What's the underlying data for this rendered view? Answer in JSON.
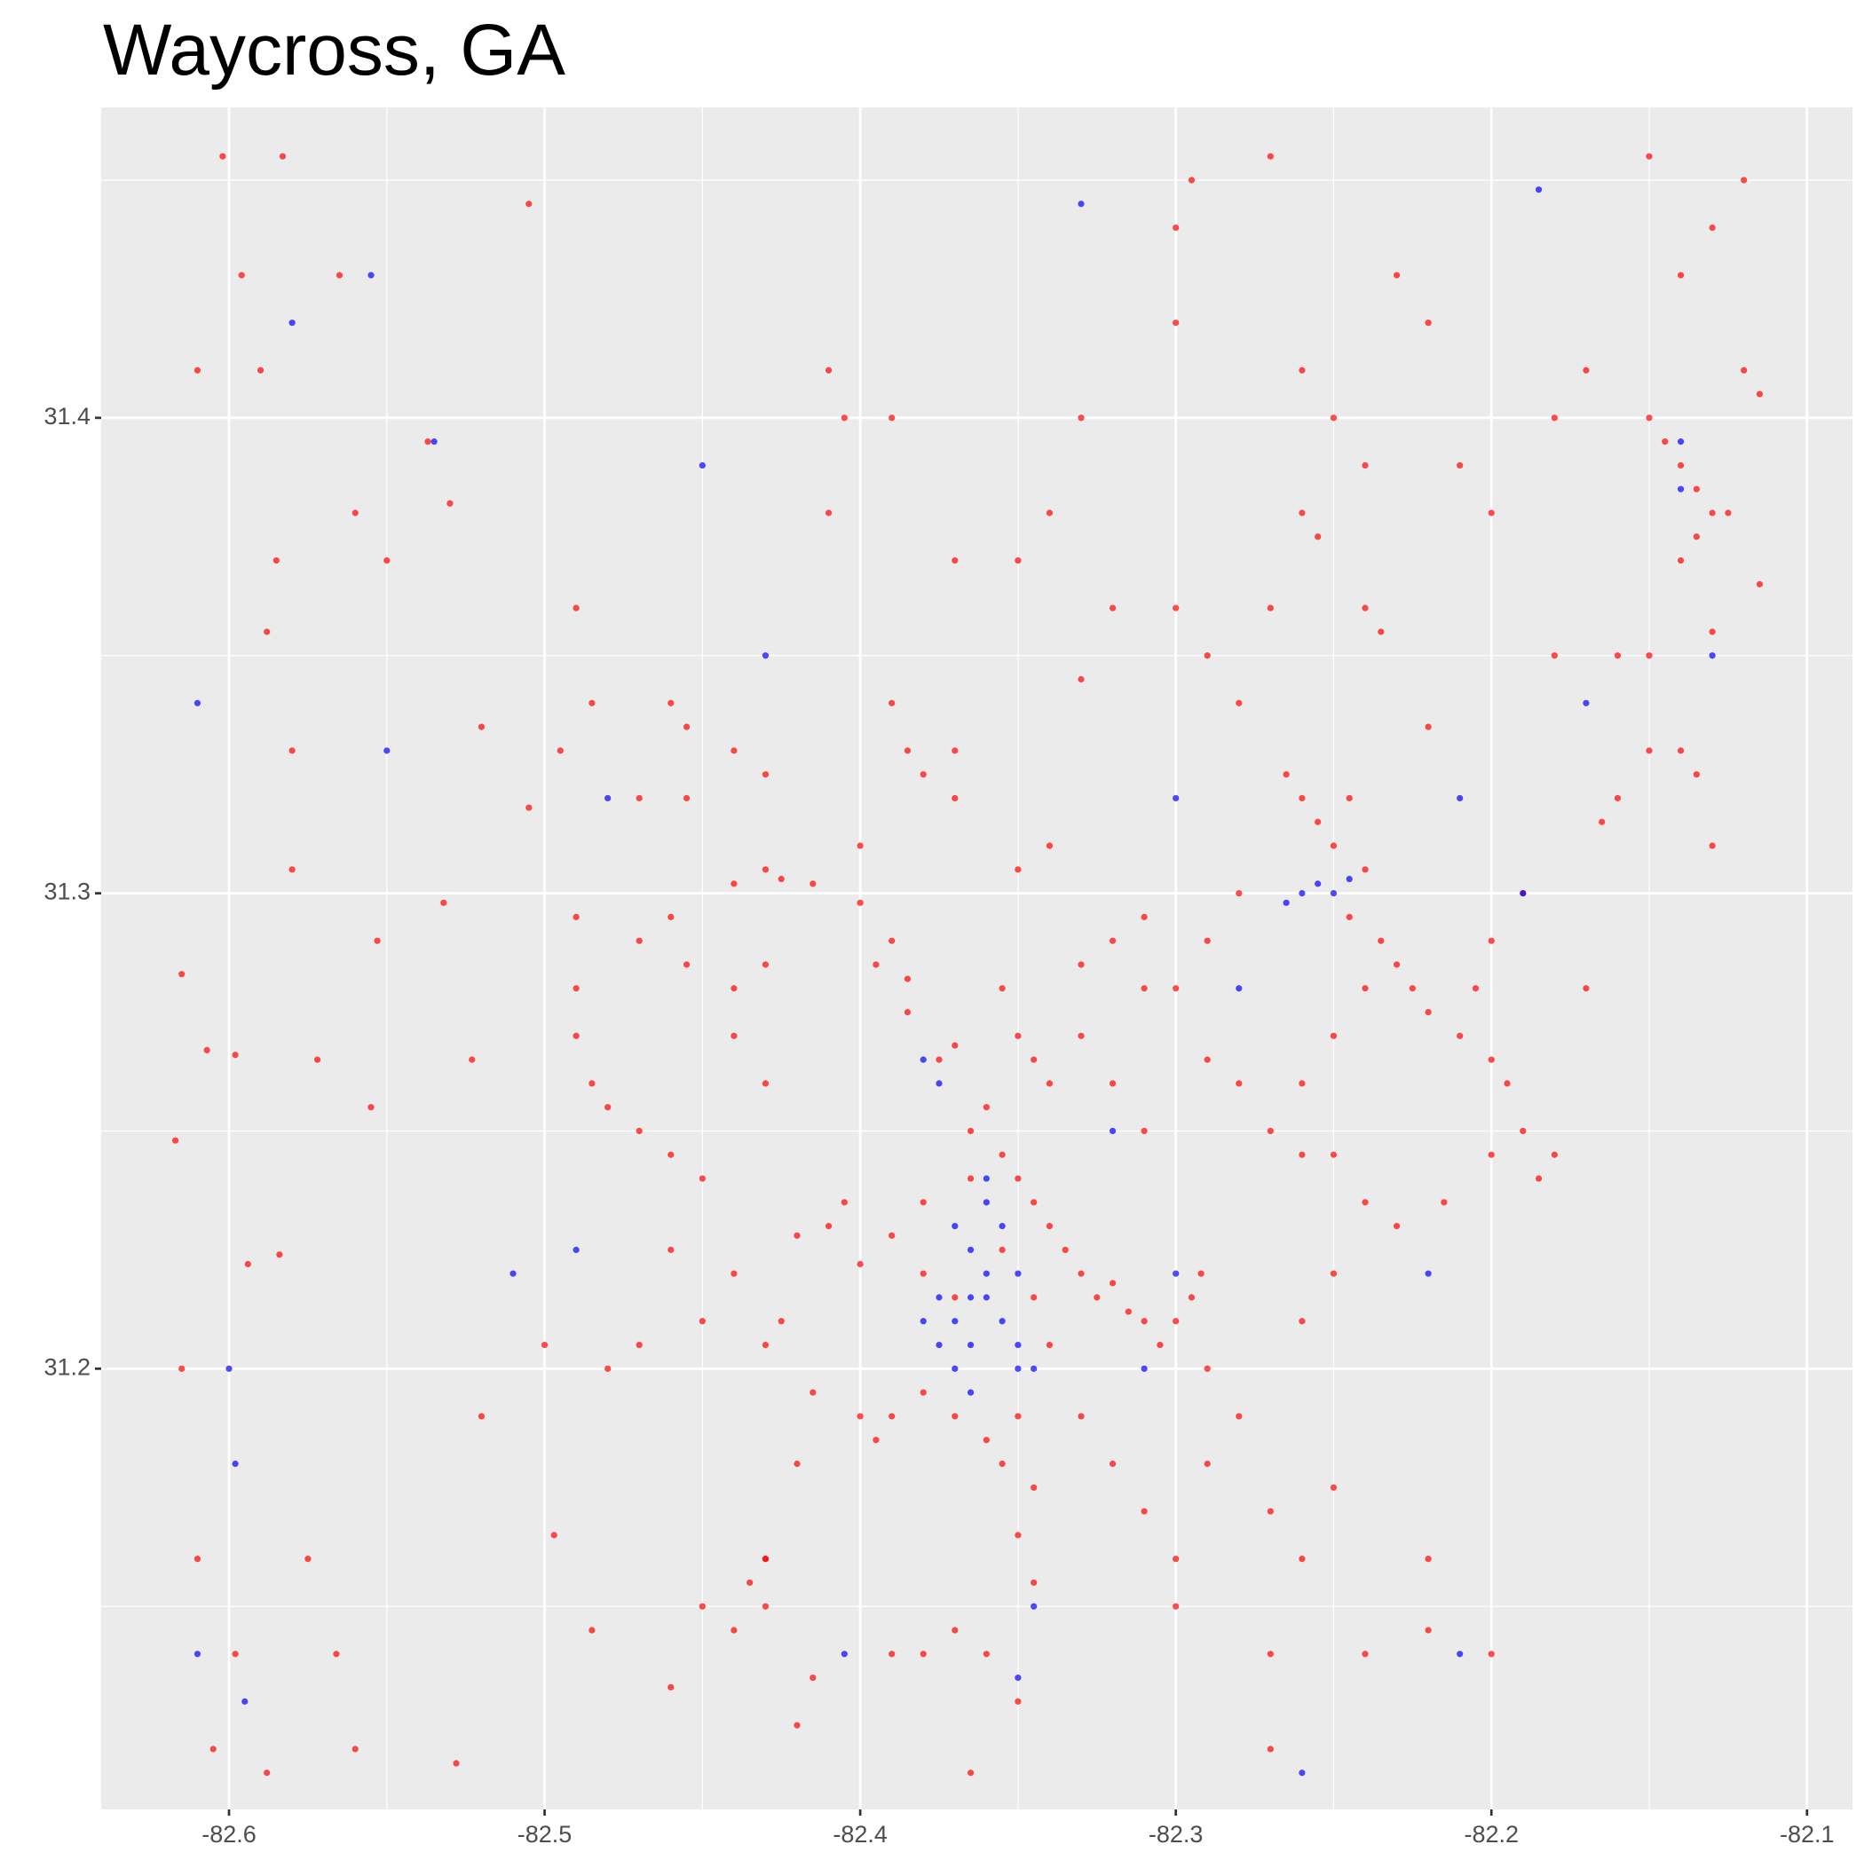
{
  "chart_data": {
    "type": "scatter",
    "title": "Waycross, GA",
    "xlim": [
      -82.6405,
      -82.0856
    ],
    "ylim": [
      31.1073,
      31.4653
    ],
    "xticks": [
      -82.6,
      -82.5,
      -82.4,
      -82.3,
      -82.2,
      -82.1
    ],
    "yticks": [
      31.2,
      31.3,
      31.4
    ],
    "grid": true,
    "minor_grid": true,
    "background": "#ebebeb",
    "series": [
      {
        "color": "#ff0000",
        "x": [
          -82.602,
          -82.583,
          -82.596,
          -82.565,
          -82.59,
          -82.56,
          -82.585,
          -82.537,
          -82.53,
          -82.505,
          -82.61,
          -82.588,
          -82.58,
          -82.58,
          -82.553,
          -82.532,
          -82.523,
          -82.55,
          -82.615,
          -82.607,
          -82.598,
          -82.617,
          -82.572,
          -82.555,
          -82.594,
          -82.584,
          -82.615,
          -82.61,
          -82.598,
          -82.605,
          -82.588,
          -82.56,
          -82.528,
          -82.575,
          -82.566,
          -82.5,
          -82.497,
          -82.485,
          -82.46,
          -82.52,
          -82.49,
          -82.485,
          -82.495,
          -82.505,
          -82.47,
          -82.46,
          -82.455,
          -82.455,
          -82.44,
          -82.43,
          -82.43,
          -82.425,
          -82.44,
          -82.415,
          -82.4,
          -82.39,
          -82.385,
          -82.395,
          -82.385,
          -82.37,
          -82.375,
          -82.365,
          -82.36,
          -82.355,
          -82.35,
          -82.345,
          -82.34,
          -82.335,
          -82.33,
          -82.325,
          -82.32,
          -82.315,
          -82.31,
          -82.305,
          -82.3,
          -82.295,
          -82.29,
          -82.292,
          -82.34,
          -82.345,
          -82.38,
          -82.39,
          -82.4,
          -82.41,
          -82.405,
          -82.42,
          -82.38,
          -82.37,
          -82.355,
          -82.365,
          -82.345,
          -82.35,
          -82.34,
          -82.355,
          -82.33,
          -82.32,
          -82.31,
          -82.3,
          -82.29,
          -82.28,
          -82.27,
          -82.26,
          -82.25,
          -82.26,
          -82.25,
          -82.24,
          -82.235,
          -82.23,
          -82.225,
          -82.22,
          -82.245,
          -82.24,
          -82.25,
          -82.255,
          -82.245,
          -82.26,
          -82.265,
          -82.24,
          -82.235,
          -82.22,
          -82.21,
          -82.2,
          -82.195,
          -82.19,
          -82.18,
          -82.185,
          -82.2,
          -82.215,
          -82.23,
          -82.24,
          -82.35,
          -82.355,
          -82.345,
          -82.35,
          -82.345,
          -82.36,
          -82.37,
          -82.38,
          -82.39,
          -82.395,
          -82.4,
          -82.415,
          -82.42,
          -82.43,
          -82.435,
          -82.425,
          -82.43,
          -82.44,
          -82.45,
          -82.46,
          -82.47,
          -82.48,
          -82.485,
          -82.49,
          -82.49,
          -82.49,
          -82.47,
          -82.46,
          -82.455,
          -82.44,
          -82.43,
          -82.44,
          -82.43,
          -82.46,
          -82.45,
          -82.47,
          -82.48,
          -82.34,
          -82.35,
          -82.37,
          -82.37,
          -82.38,
          -82.385,
          -82.39,
          -82.4,
          -82.41,
          -82.405,
          -82.41,
          -82.39,
          -82.37,
          -82.35,
          -82.34,
          -82.33,
          -82.32,
          -82.3,
          -82.29,
          -82.28,
          -82.27,
          -82.26,
          -82.255,
          -82.3,
          -82.3,
          -82.295,
          -82.27,
          -82.26,
          -82.25,
          -82.24,
          -82.23,
          -82.22,
          -82.21,
          -82.2,
          -82.18,
          -82.17,
          -82.16,
          -82.15,
          -82.16,
          -82.165,
          -82.14,
          -82.135,
          -82.13,
          -82.145,
          -82.14,
          -82.135,
          -82.13,
          -82.125,
          -82.135,
          -82.14,
          -82.15,
          -82.12,
          -82.115,
          -82.14,
          -82.13,
          -82.15,
          -82.12,
          -82.115,
          -82.13,
          -82.15,
          -82.18,
          -82.19,
          -82.17,
          -82.2,
          -82.205,
          -82.25,
          -82.26,
          -82.28,
          -82.29,
          -82.3,
          -82.3,
          -82.27,
          -82.26,
          -82.25,
          -82.24,
          -82.22,
          -82.2,
          -82.22,
          -82.27,
          -82.27,
          -82.32,
          -82.31,
          -82.33,
          -82.37,
          -82.38,
          -82.39,
          -82.36,
          -82.415,
          -82.42,
          -82.44,
          -82.43,
          -82.43,
          -82.45,
          -82.365,
          -82.35,
          -82.31,
          -82.32,
          -82.31,
          -82.33,
          -82.28,
          -82.29,
          -82.33,
          -82.52
        ],
        "values": [
          31.455,
          31.455,
          31.43,
          31.43,
          31.41,
          31.38,
          31.37,
          31.395,
          31.382,
          31.445,
          31.41,
          31.355,
          31.33,
          31.305,
          31.29,
          31.298,
          31.265,
          31.37,
          31.283,
          31.267,
          31.266,
          31.248,
          31.265,
          31.255,
          31.222,
          31.224,
          31.2,
          31.16,
          31.14,
          31.12,
          31.115,
          31.12,
          31.117,
          31.16,
          31.14,
          31.205,
          31.165,
          31.145,
          31.133,
          31.19,
          31.36,
          31.34,
          31.33,
          31.318,
          31.32,
          31.34,
          31.335,
          31.32,
          31.33,
          31.325,
          31.305,
          31.303,
          31.302,
          31.302,
          31.298,
          31.29,
          31.282,
          31.285,
          31.275,
          31.268,
          31.265,
          31.25,
          31.255,
          31.245,
          31.24,
          31.235,
          31.23,
          31.225,
          31.22,
          31.215,
          31.218,
          31.212,
          31.21,
          31.205,
          31.21,
          31.215,
          31.2,
          31.22,
          31.205,
          31.215,
          31.235,
          31.228,
          31.222,
          31.23,
          31.235,
          31.228,
          31.22,
          31.215,
          31.225,
          31.24,
          31.265,
          31.27,
          31.26,
          31.28,
          31.285,
          31.29,
          31.295,
          31.28,
          31.265,
          31.26,
          31.25,
          31.245,
          31.245,
          31.26,
          31.27,
          31.28,
          31.29,
          31.285,
          31.28,
          31.275,
          31.295,
          31.305,
          31.31,
          31.315,
          31.32,
          31.32,
          31.325,
          31.36,
          31.355,
          31.335,
          31.27,
          31.265,
          31.26,
          31.25,
          31.245,
          31.24,
          31.245,
          31.235,
          31.23,
          31.235,
          31.19,
          31.18,
          31.175,
          31.165,
          31.155,
          31.185,
          31.19,
          31.195,
          31.19,
          31.185,
          31.19,
          31.195,
          31.18,
          31.16,
          31.155,
          31.21,
          31.205,
          31.22,
          31.24,
          31.245,
          31.25,
          31.255,
          31.26,
          31.27,
          31.28,
          31.295,
          31.29,
          31.295,
          31.285,
          31.28,
          31.285,
          31.27,
          31.26,
          31.225,
          31.21,
          31.205,
          31.2,
          31.31,
          31.305,
          31.32,
          31.33,
          31.325,
          31.33,
          31.34,
          31.31,
          31.38,
          31.4,
          31.41,
          31.4,
          31.37,
          31.37,
          31.38,
          31.4,
          31.36,
          31.36,
          31.35,
          31.34,
          31.36,
          31.38,
          31.375,
          31.42,
          31.44,
          31.45,
          31.455,
          31.41,
          31.4,
          31.39,
          31.43,
          31.42,
          31.39,
          31.38,
          31.4,
          31.41,
          31.35,
          31.33,
          31.32,
          31.315,
          31.33,
          31.325,
          31.31,
          31.395,
          31.39,
          31.385,
          31.38,
          31.38,
          31.375,
          31.37,
          31.4,
          31.41,
          31.405,
          31.43,
          31.44,
          31.455,
          31.45,
          31.365,
          31.355,
          31.35,
          31.35,
          31.3,
          31.28,
          31.29,
          31.28,
          31.22,
          31.21,
          31.19,
          31.18,
          31.16,
          31.15,
          31.17,
          31.16,
          31.175,
          31.14,
          31.145,
          31.14,
          31.16,
          31.14,
          31.12,
          31.18,
          31.17,
          31.19,
          31.145,
          31.14,
          31.14,
          31.14,
          31.135,
          31.125,
          31.145,
          31.16,
          31.15,
          31.15,
          31.115,
          31.13,
          31.25,
          31.26,
          31.28,
          31.27,
          31.3,
          31.29,
          31.345,
          31.335
        ]
      },
      {
        "color": "#0000ff",
        "x": [
          -82.36,
          -82.365,
          -82.355,
          -82.37,
          -82.36,
          -82.35,
          -82.375,
          -82.37,
          -82.365,
          -82.35,
          -82.345,
          -82.355,
          -82.365,
          -82.37,
          -82.36,
          -82.35,
          -82.38,
          -82.375,
          -82.36,
          -82.365,
          -82.25,
          -82.255,
          -82.26,
          -82.245,
          -82.265,
          -82.14,
          -82.14,
          -82.185,
          -82.375,
          -82.38,
          -82.58,
          -82.555,
          -82.55,
          -82.535,
          -82.61,
          -82.6,
          -82.598,
          -82.595,
          -82.61,
          -82.51,
          -82.49,
          -82.48,
          -82.45,
          -82.43,
          -82.33,
          -82.3,
          -82.28,
          -82.22,
          -82.21,
          -82.26,
          -82.35,
          -82.345,
          -82.31,
          -82.3,
          -82.32,
          -82.19,
          -82.17,
          -82.13,
          -82.21,
          -82.405
        ],
        "values": [
          31.22,
          31.225,
          31.23,
          31.21,
          31.235,
          31.22,
          31.205,
          31.2,
          31.195,
          31.2,
          31.2,
          31.21,
          31.215,
          31.23,
          31.215,
          31.205,
          31.21,
          31.215,
          31.24,
          31.205,
          31.3,
          31.302,
          31.3,
          31.303,
          31.298,
          31.395,
          31.385,
          31.448,
          31.26,
          31.265,
          31.42,
          31.43,
          31.33,
          31.395,
          31.34,
          31.2,
          31.18,
          31.13,
          31.14,
          31.22,
          31.225,
          31.32,
          31.39,
          31.35,
          31.445,
          31.32,
          31.28,
          31.22,
          31.14,
          31.115,
          31.135,
          31.15,
          31.2,
          31.22,
          31.25,
          31.3,
          31.34,
          31.35,
          31.32,
          31.14
        ]
      }
    ]
  }
}
